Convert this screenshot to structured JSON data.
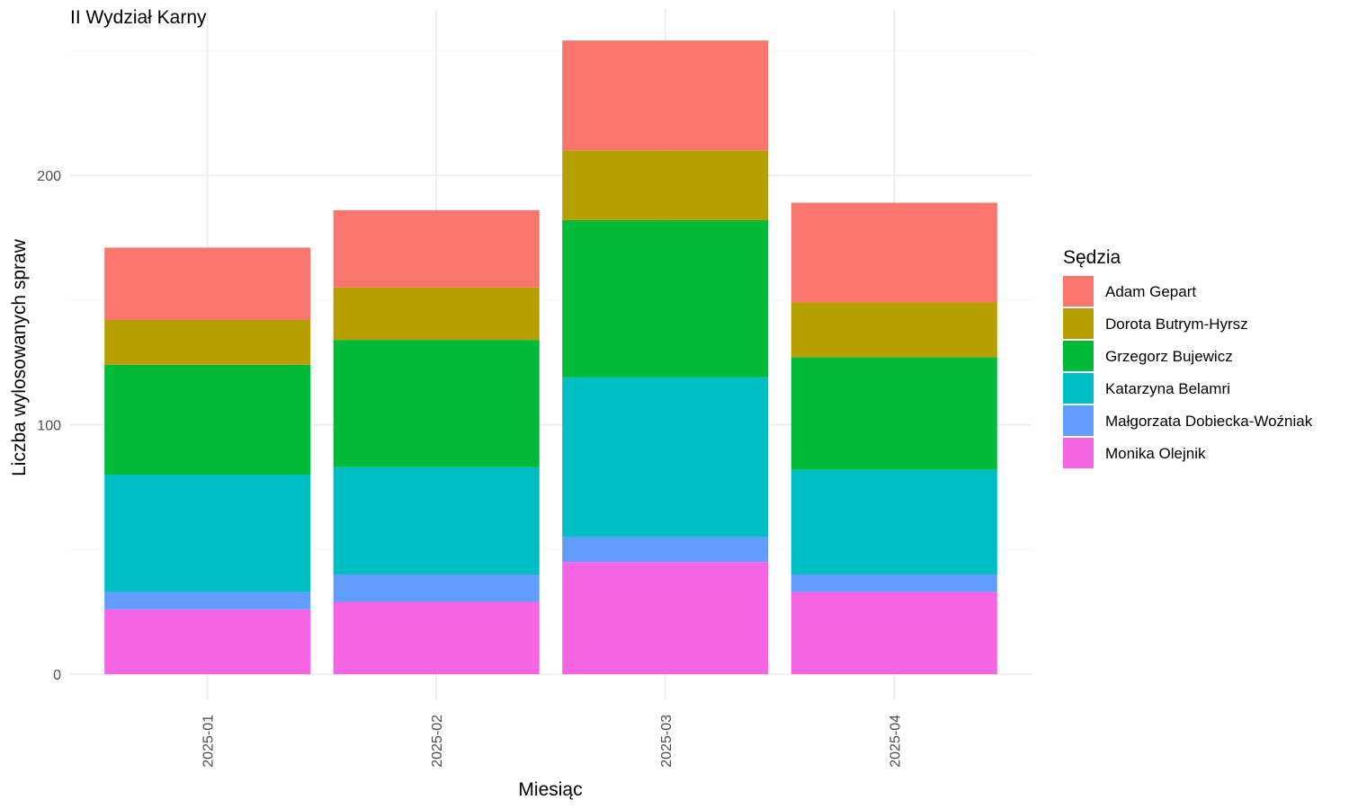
{
  "chart_data": {
    "type": "bar",
    "stacked": true,
    "title": "II Wydział Karny",
    "xlabel": "Miesiąc",
    "ylabel": "Liczba wylosowanych spraw",
    "ylim": [
      0,
      260
    ],
    "yticks": [
      0,
      100,
      200
    ],
    "grid": true,
    "legend_title": "Sędzia",
    "legend_position": "right",
    "categories": [
      "2025-01",
      "2025-02",
      "2025-03",
      "2025-04"
    ],
    "series": [
      {
        "name": "Monika Olejnik",
        "color": "#F564E3",
        "values": [
          26,
          29,
          45,
          33
        ]
      },
      {
        "name": "Małgorzata Dobiecka-Woźniak",
        "color": "#619CFF",
        "values": [
          7,
          11,
          10,
          7
        ]
      },
      {
        "name": "Katarzyna Belamri",
        "color": "#00BFC4",
        "values": [
          47,
          43,
          64,
          42
        ]
      },
      {
        "name": "Grzegorz Bujewicz",
        "color": "#00BA38",
        "values": [
          44,
          51,
          63,
          45
        ]
      },
      {
        "name": "Dorota Butrym-Hyrsz",
        "color": "#B79F00",
        "values": [
          18,
          21,
          28,
          22
        ]
      },
      {
        "name": "Adam Gepart",
        "color": "#F8766D",
        "values": [
          29,
          31,
          44,
          40
        ]
      }
    ],
    "legend_order": [
      "Adam Gepart",
      "Dorota Butrym-Hyrsz",
      "Grzegorz Bujewicz",
      "Katarzyna Belamri",
      "Małgorzata Dobiecka-Woźniak",
      "Monika Olejnik"
    ]
  }
}
